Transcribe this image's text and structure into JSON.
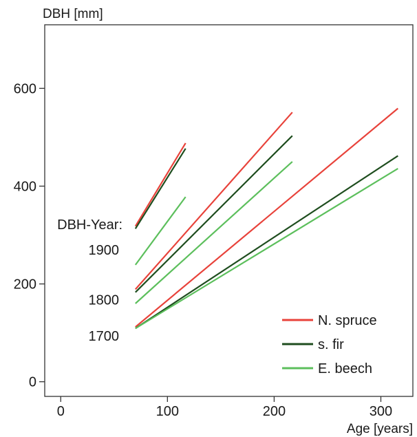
{
  "chart_data": {
    "type": "line",
    "title": "",
    "xlabel": "Age [years]",
    "ylabel": "DBH [mm]",
    "xlim": [
      -15,
      330
    ],
    "ylim": [
      -30,
      730
    ],
    "x_ticks": [
      0,
      100,
      200,
      300
    ],
    "y_ticks": [
      0,
      200,
      400,
      600
    ],
    "grid": false,
    "legend_position": "bottom-right",
    "annotations": {
      "header": "DBH-Year:",
      "cohorts": [
        {
          "label": "1900",
          "y": 270
        },
        {
          "label": "1800",
          "y": 168
        },
        {
          "label": "1700",
          "y": 94
        }
      ]
    },
    "series": [
      {
        "name": "N. spruce",
        "color": "#e8423a",
        "cohort": "1900",
        "x": [
          70,
          117
        ],
        "y": [
          318,
          488
        ]
      },
      {
        "name": "s. fir",
        "color": "#1e4d1e",
        "cohort": "1900",
        "x": [
          70,
          117
        ],
        "y": [
          313,
          477
        ]
      },
      {
        "name": "E. beech",
        "color": "#5cbf5c",
        "cohort": "1900",
        "x": [
          70,
          117
        ],
        "y": [
          239,
          378
        ]
      },
      {
        "name": "N. spruce",
        "color": "#e8423a",
        "cohort": "1800",
        "x": [
          70,
          217
        ],
        "y": [
          189,
          551
        ]
      },
      {
        "name": "s. fir",
        "color": "#1e4d1e",
        "cohort": "1800",
        "x": [
          70,
          217
        ],
        "y": [
          183,
          503
        ]
      },
      {
        "name": "E. beech",
        "color": "#5cbf5c",
        "cohort": "1800",
        "x": [
          70,
          217
        ],
        "y": [
          160,
          450
        ]
      },
      {
        "name": "N. spruce",
        "color": "#e8423a",
        "cohort": "1700",
        "x": [
          70,
          316
        ],
        "y": [
          112,
          559
        ]
      },
      {
        "name": "s. fir",
        "color": "#1e4d1e",
        "cohort": "1700",
        "x": [
          70,
          316
        ],
        "y": [
          109,
          462
        ]
      },
      {
        "name": "E. beech",
        "color": "#5cbf5c",
        "cohort": "1700",
        "x": [
          70,
          316
        ],
        "y": [
          109,
          436
        ]
      }
    ],
    "legend": [
      {
        "name": "N. spruce",
        "color": "#e8423a"
      },
      {
        "name": "s. fir",
        "color": "#1e4d1e"
      },
      {
        "name": "E. beech",
        "color": "#5cbf5c"
      }
    ]
  }
}
